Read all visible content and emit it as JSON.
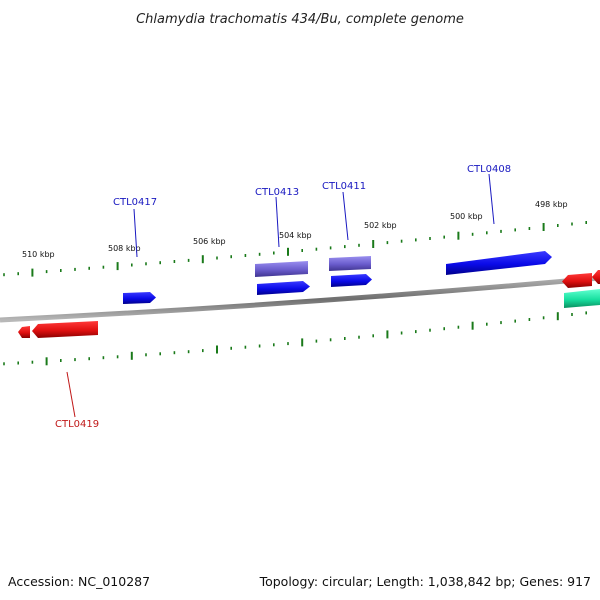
{
  "title": "Chlamydia trachomatis 434/Bu, complete genome",
  "footer": {
    "accession": "Accession: NC_010287",
    "summary": "Topology: circular; Length: 1,038,842 bp; Genes: 917"
  },
  "ruler_labels": [
    "510 kbp",
    "508 kbp",
    "506 kbp",
    "504 kbp",
    "502 kbp",
    "500 kbp",
    "498 kbp"
  ],
  "gene_labels": [
    "CTL0417",
    "CTL0413",
    "CTL0411",
    "CTL0408",
    "CTL0419"
  ],
  "colors": {
    "forward_gene": "#1010f0",
    "forward_gene_alt": "#6a5fd0",
    "reverse_gene": "#e01818",
    "rna_gene": "#20e0a0",
    "backbone": "#808080",
    "tick": "#1a7a1a",
    "forward_label": "#1818c0",
    "reverse_label": "#c01818"
  }
}
